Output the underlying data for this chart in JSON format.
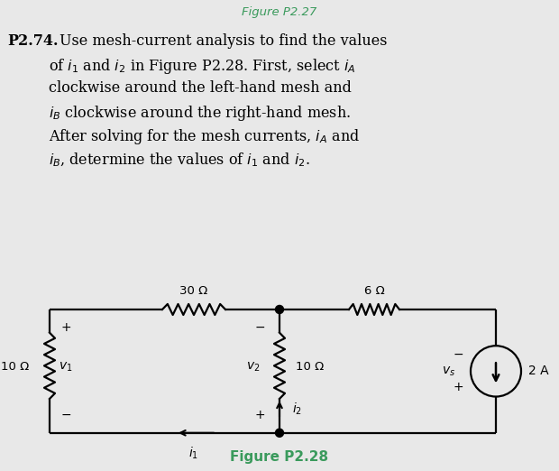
{
  "title_top": "Figure P2.27",
  "title_top_color": "#3a9a5c",
  "figure_caption": "Figure P2.28",
  "figure_caption_color": "#3a9a5c",
  "bg_top": "#ffffff",
  "bg_circuit": "#d9d9d9",
  "bg_fig": "#e8e8e8",
  "r1_label": "30 Ω",
  "r2_label": "6 Ω",
  "r_left_label": "10 Ω",
  "r_mid_label": "10 Ω",
  "cs_label": "2 A",
  "v1_label": "v₁",
  "v2_label": "v₂",
  "vs_label": "vₛ",
  "i1_label": "i₁",
  "i2_label": "i₂"
}
